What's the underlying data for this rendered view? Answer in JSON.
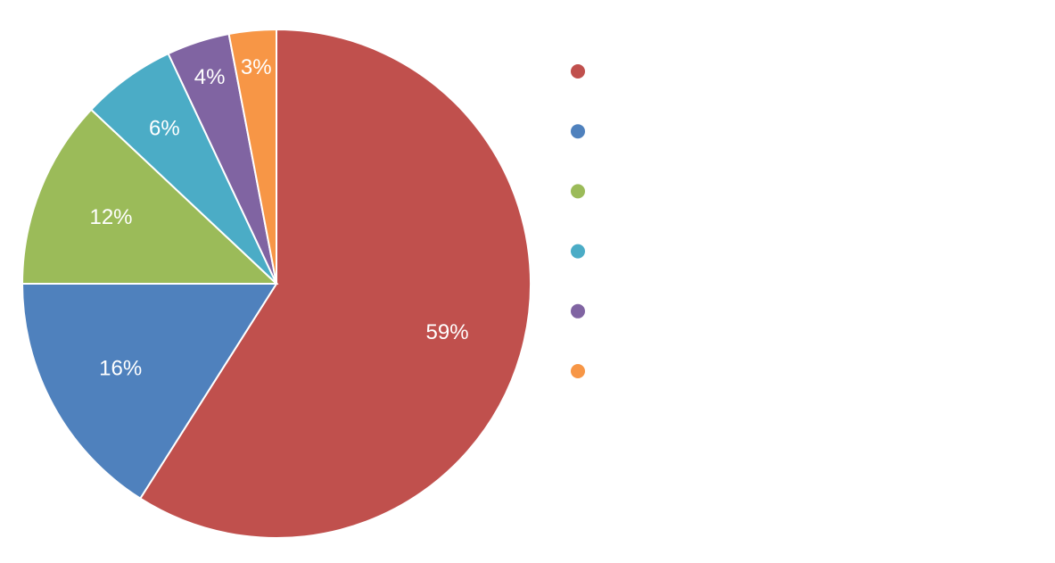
{
  "chart_data": {
    "type": "pie",
    "values": [
      59,
      16,
      12,
      6,
      4,
      3
    ],
    "value_labels": [
      "59%",
      "16%",
      "12%",
      "6%",
      "4%",
      "3%"
    ],
    "colors": [
      "#c0504d",
      "#4f81bd",
      "#9bbb59",
      "#4bacc6",
      "#8064a2",
      "#f79646"
    ],
    "legend": "right"
  }
}
